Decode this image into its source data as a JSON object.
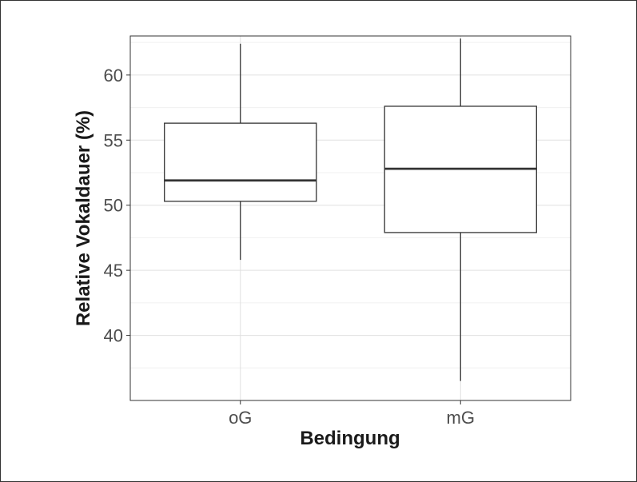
{
  "chart_data": {
    "type": "boxplot",
    "title": "",
    "xlabel": "Bedingung",
    "ylabel": "Relative Vokaldauer (%)",
    "categories": [
      "oG",
      "mG"
    ],
    "ylim": [
      35,
      63
    ],
    "yticks": [
      40,
      45,
      50,
      55,
      60
    ],
    "grid": true,
    "boxes": [
      {
        "category": "oG",
        "whisker_low": 45.8,
        "q1": 50.3,
        "median": 51.9,
        "q3": 56.3,
        "whisker_high": 62.4
      },
      {
        "category": "mG",
        "whisker_low": 36.5,
        "q1": 47.9,
        "median": 52.8,
        "q3": 57.6,
        "whisker_high": 62.8
      }
    ]
  },
  "colors": {
    "box_stroke": "#333333",
    "grid_major": "#e0e0e0",
    "grid_minor": "#f0f0f0",
    "panel_border": "#333333"
  }
}
